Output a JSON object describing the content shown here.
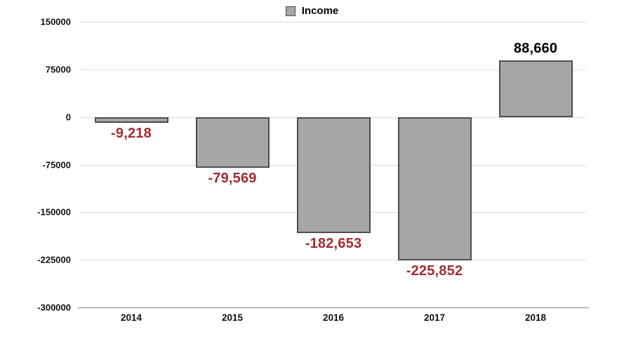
{
  "chart_data": {
    "type": "bar",
    "title": "",
    "categories": [
      "2014",
      "2015",
      "2016",
      "2017",
      "2018"
    ],
    "series": [
      {
        "name": "Income",
        "values": [
          -9218,
          -79569,
          -182653,
          -225852,
          88660
        ]
      }
    ],
    "value_labels": [
      "-9,218",
      "-79,569",
      "-182,653",
      "-225,852",
      "88,660"
    ],
    "y_ticks": [
      150000,
      75000,
      0,
      -75000,
      -150000,
      -225000,
      -300000
    ],
    "y_tick_labels": [
      "150000",
      "75000",
      "0",
      "-75000",
      "-150000",
      "-225000",
      "-300000"
    ],
    "ylim": [
      -300000,
      150000
    ],
    "grid": true,
    "legend_position": "top-center",
    "colors": {
      "bar_fill": "#a6a6a6",
      "bar_border": "#4d4d4d",
      "negative_label": "#a32c32",
      "positive_label": "#000000",
      "gridline": "#d9d9d9",
      "axis_line": "#808080",
      "tick_text": "#111111"
    }
  }
}
